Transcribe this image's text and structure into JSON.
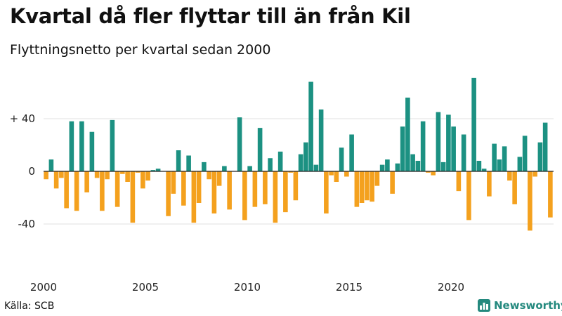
{
  "title": "Kvartal då fler flyttar till än från Kil",
  "subtitle": "Flyttningsnetto per kvartal sedan 2000",
  "source": "Källa: SCB",
  "brand": {
    "name": "Newsworthy",
    "icon": "bar-chart-logo-icon"
  },
  "colors": {
    "positive": "#1c9182",
    "negative": "#f4a11e",
    "axis": "#222222",
    "grid": "#e2e2e2"
  },
  "chart_data": {
    "type": "bar",
    "title": "Kvartal då fler flyttar till än från Kil",
    "subtitle": "Flyttningsnetto per kvartal sedan 2000",
    "xlabel": "",
    "ylabel": "",
    "ylim": [
      -75,
      75
    ],
    "yticks": [
      {
        "value": 40,
        "label": "+ 40"
      },
      {
        "value": 0,
        "label": "0"
      },
      {
        "value": -40,
        "label": "-40"
      }
    ],
    "xticks": [
      {
        "year": 2000,
        "label": "2000"
      },
      {
        "year": 2005,
        "label": "2005"
      },
      {
        "year": 2010,
        "label": "2010"
      },
      {
        "year": 2015,
        "label": "2015"
      },
      {
        "year": 2020,
        "label": "2020"
      }
    ],
    "grid": true,
    "legend": "none",
    "categories": [
      "2000 Q1",
      "2000 Q2",
      "2000 Q3",
      "2000 Q4",
      "2001 Q1",
      "2001 Q2",
      "2001 Q3",
      "2001 Q4",
      "2002 Q1",
      "2002 Q2",
      "2002 Q3",
      "2002 Q4",
      "2003 Q1",
      "2003 Q2",
      "2003 Q3",
      "2003 Q4",
      "2004 Q1",
      "2004 Q2",
      "2004 Q3",
      "2004 Q4",
      "2005 Q1",
      "2005 Q2",
      "2005 Q3",
      "2005 Q4",
      "2006 Q1",
      "2006 Q2",
      "2006 Q3",
      "2006 Q4",
      "2007 Q1",
      "2007 Q2",
      "2007 Q3",
      "2007 Q4",
      "2008 Q1",
      "2008 Q2",
      "2008 Q3",
      "2008 Q4",
      "2009 Q1",
      "2009 Q2",
      "2009 Q3",
      "2009 Q4",
      "2010 Q1",
      "2010 Q2",
      "2010 Q3",
      "2010 Q4",
      "2011 Q1",
      "2011 Q2",
      "2011 Q3",
      "2011 Q4",
      "2012 Q1",
      "2012 Q2",
      "2012 Q3",
      "2012 Q4",
      "2013 Q1",
      "2013 Q2",
      "2013 Q3",
      "2013 Q4",
      "2014 Q1",
      "2014 Q2",
      "2014 Q3",
      "2014 Q4",
      "2015 Q1",
      "2015 Q2",
      "2015 Q3",
      "2015 Q4",
      "2016 Q1",
      "2016 Q2",
      "2016 Q3",
      "2016 Q4",
      "2017 Q1",
      "2017 Q2",
      "2017 Q3",
      "2017 Q4",
      "2018 Q1",
      "2018 Q2",
      "2018 Q3",
      "2018 Q4",
      "2019 Q1",
      "2019 Q2",
      "2019 Q3",
      "2019 Q4",
      "2020 Q1",
      "2020 Q2",
      "2020 Q3",
      "2020 Q4",
      "2021 Q1",
      "2021 Q2",
      "2021 Q3",
      "2021 Q4",
      "2022 Q1",
      "2022 Q2",
      "2022 Q3",
      "2022 Q4",
      "2023 Q1",
      "2023 Q2",
      "2023 Q3",
      "2023 Q4",
      "2024 Q1",
      "2024 Q2",
      "2024 Q3",
      "2024 Q4"
    ],
    "values": [
      -6,
      9,
      -13,
      -5,
      -28,
      38,
      -30,
      38,
      -16,
      30,
      -5,
      -30,
      -6,
      39,
      -27,
      -2,
      -8,
      -39,
      -1,
      -13,
      -7,
      1,
      2,
      0,
      -34,
      -17,
      16,
      -26,
      12,
      -39,
      -24,
      7,
      -6,
      -32,
      -11,
      4,
      -29,
      0,
      41,
      -37,
      4,
      -27,
      33,
      -25,
      10,
      -39,
      15,
      -31,
      -1,
      -22,
      13,
      22,
      68,
      5,
      47,
      -32,
      -3,
      -8,
      18,
      -4,
      28,
      -27,
      -24,
      -22,
      -23,
      -11,
      5,
      9,
      -17,
      6,
      34,
      56,
      13,
      8,
      38,
      -1,
      -3,
      45,
      7,
      43,
      34,
      -15,
      28,
      -37,
      71,
      8,
      2,
      -19,
      21,
      9,
      19,
      -7,
      -25,
      11,
      27,
      -45,
      -4,
      22,
      37,
      -35
    ]
  }
}
